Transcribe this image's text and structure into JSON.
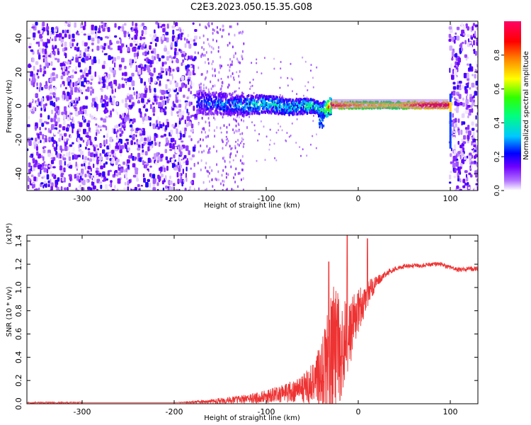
{
  "title": "C2E3.2023.050.15.35.G08",
  "chart_data": [
    {
      "type": "heatmap",
      "xlabel": "Height of straight line (km)",
      "ylabel": "Frequency (Hz)",
      "xlim": [
        -360,
        130
      ],
      "ylim": [
        -50,
        50
      ],
      "xticks": [
        -300,
        -200,
        -100,
        0,
        100
      ],
      "yticks": [
        -40,
        -20,
        0,
        20,
        40
      ],
      "grid": false,
      "colorbar": {
        "label": "Normalized spectral amplitude",
        "range": [
          0,
          1
        ],
        "ticks": [
          "0.0",
          "0.2",
          "0.4",
          "0.6",
          "0.8"
        ],
        "colormap": [
          "#e6d4ff",
          "#8a00ff",
          "#0000ff",
          "#00ffff",
          "#00ff00",
          "#ffff00",
          "#ff0000",
          "#ff0066"
        ]
      },
      "ridge_centerline": {
        "x": [
          -175,
          -150,
          -125,
          -100,
          -75,
          -50,
          -40,
          -30,
          -10,
          10,
          40,
          70,
          98
        ],
        "y": [
          3,
          2,
          1,
          2,
          0,
          1,
          -2,
          1,
          1,
          1,
          1,
          1,
          1
        ],
        "amplitude": [
          0.25,
          0.3,
          0.35,
          0.4,
          0.4,
          0.45,
          0.5,
          0.9,
          0.8,
          0.75,
          0.7,
          0.95,
          0.95
        ]
      }
    },
    {
      "type": "line",
      "xlabel": "Height of straight line (km)",
      "ylabel": "SNR (10 * v/v)",
      "yscale_label": "(x10⁴)",
      "xlim": [
        -360,
        130
      ],
      "ylim": [
        0,
        1.45
      ],
      "xticks": [
        -300,
        -200,
        -100,
        0,
        100
      ],
      "yticks": [
        "0.0",
        "0.2",
        "0.4",
        "0.6",
        "0.8",
        "1.0",
        "1.2",
        "1.4"
      ],
      "grid": false,
      "color": "#ee3333",
      "series": [
        {
          "x": [
            -360,
            -300,
            -250,
            -200,
            -180,
            -160,
            -140,
            -120,
            -100,
            -80,
            -60,
            -50,
            -40,
            -35,
            -30,
            -25,
            -20,
            -15,
            -10,
            -5,
            0,
            5,
            10,
            15,
            20,
            25,
            30,
            40,
            50,
            60,
            70,
            80,
            90,
            100,
            110,
            120,
            130
          ],
          "y": [
            0.01,
            0.01,
            0.01,
            0.01,
            0.015,
            0.02,
            0.03,
            0.04,
            0.06,
            0.09,
            0.13,
            0.17,
            0.25,
            0.3,
            0.35,
            0.45,
            0.4,
            0.55,
            0.6,
            0.7,
            0.8,
            0.85,
            0.95,
            1.0,
            1.05,
            1.08,
            1.12,
            1.16,
            1.18,
            1.19,
            1.19,
            1.2,
            1.2,
            1.17,
            1.15,
            1.16,
            1.16
          ],
          "noise_envelope": [
            0,
            0,
            0,
            0,
            0.01,
            0.02,
            0.03,
            0.04,
            0.06,
            0.08,
            0.12,
            0.18,
            0.3,
            0.5,
            0.6,
            0.65,
            0.45,
            0.35,
            0.3,
            0.25,
            0.2,
            0.15,
            0.12,
            0.1,
            0.05,
            0.04,
            0.03,
            0.02,
            0.02,
            0.02,
            0.02,
            0.02,
            0.02,
            0.02,
            0.02,
            0.02,
            0.02
          ]
        }
      ],
      "spikes": [
        {
          "x": -32,
          "y": 1.22
        },
        {
          "x": -12,
          "y": 1.45
        },
        {
          "x": 10,
          "y": 1.42
        }
      ]
    }
  ]
}
